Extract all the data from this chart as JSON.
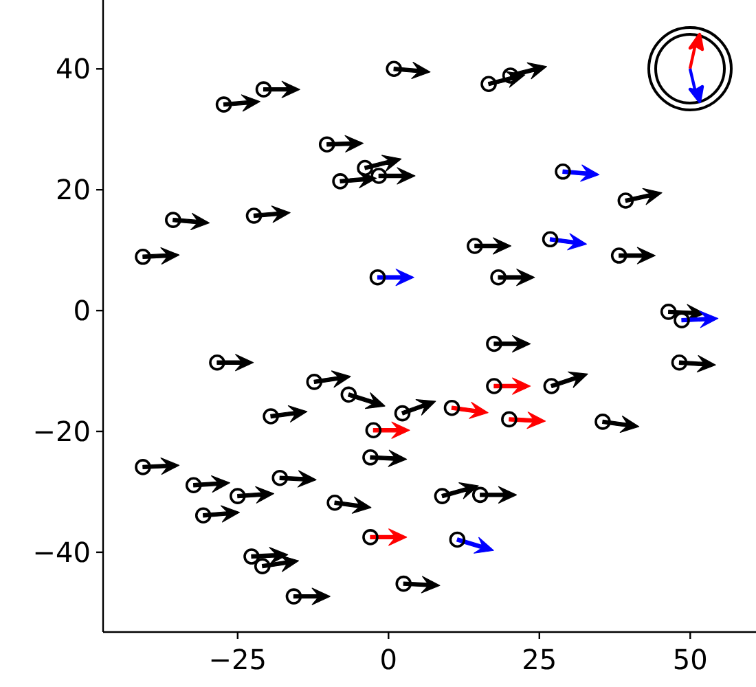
{
  "chart_data": {
    "type": "scatter",
    "marker": "circle",
    "xlim": [
      -47.3,
      60.9
    ],
    "ylim": [
      -53.2,
      51.4
    ],
    "xticks": [
      {
        "value": -25,
        "label": "−25"
      },
      0,
      25,
      50
    ],
    "yticks": [
      {
        "value": -40,
        "label": "−40"
      },
      {
        "value": -20,
        "label": "−20"
      },
      0,
      20,
      40
    ],
    "series": [
      {
        "color": "#000000",
        "x": [
          0.9,
          -27.3,
          -20.7,
          16.6,
          20.2,
          -10.2,
          -3.9,
          -8.0,
          -1.6,
          -22.3,
          -35.7,
          -40.7,
          39.3,
          14.3,
          38.2,
          18.2,
          46.4,
          17.5,
          27.0,
          35.5,
          48.2,
          8.9,
          15.2,
          -28.4,
          -12.3,
          -6.6,
          2.3,
          -19.5,
          -3.0,
          -40.7,
          -32.3,
          -18.0,
          -25.0,
          -30.7,
          -8.9,
          -22.7,
          -20.9,
          2.5,
          -15.7,
          17.5,
          10.5,
          20.0,
          -2.5,
          -3.0,
          -1.8,
          28.9,
          26.8,
          48.6,
          11.4
        ],
        "values": [
          40.0,
          34.1,
          36.6,
          37.5,
          38.9,
          27.5,
          23.6,
          21.4,
          22.3,
          15.7,
          15.0,
          8.9,
          18.2,
          10.7,
          9.1,
          5.5,
          -0.2,
          -5.5,
          -12.5,
          -18.4,
          -8.6,
          -30.7,
          -30.5,
          -8.6,
          -11.8,
          -13.9,
          -17.0,
          -17.5,
          -24.3,
          -25.9,
          -28.9,
          -27.7,
          -30.7,
          -33.9,
          -31.8,
          -40.7,
          -42.3,
          -45.2,
          -47.3,
          -12.5,
          -16.1,
          -18.0,
          -19.8,
          -37.5,
          5.5,
          23.0,
          11.8,
          -1.6,
          -37.9
        ]
      }
    ]
  }
}
